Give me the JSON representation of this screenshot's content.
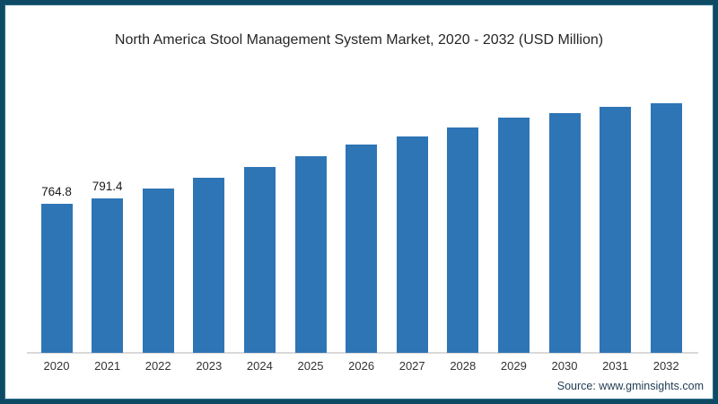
{
  "source": "Source: www.gminsights.com",
  "colors": {
    "bar": "#2e75b6",
    "border": "#0e4a63",
    "axis_line": "#d9d9d9",
    "title_text": "#262626",
    "tick_text": "#333333",
    "source_text": "#1f3b53",
    "background": "#ffffff"
  },
  "chart_data": {
    "type": "bar",
    "title": "North America Stool Management System Market, 2020 - 2032 (USD Million)",
    "categories": [
      "2020",
      "2021",
      "2022",
      "2023",
      "2024",
      "2025",
      "2026",
      "2027",
      "2028",
      "2029",
      "2030",
      "2031",
      "2032"
    ],
    "values": [
      764.8,
      791.4,
      841,
      898,
      952,
      1008,
      1065,
      1110,
      1156,
      1203,
      1228,
      1258,
      1280
    ],
    "data_labels": [
      "764.8",
      "791.4",
      "",
      "",
      "",
      "",
      "",
      "",
      "",
      "",
      "",
      "",
      ""
    ],
    "xlabel": "",
    "ylabel": "",
    "ylim": [
      0,
      1400
    ],
    "grid": false,
    "legend": false,
    "bar_color": "#2e75b6",
    "note": "Only 2020 and 2021 bars carry visible value labels; remaining values estimated from bar heights"
  }
}
